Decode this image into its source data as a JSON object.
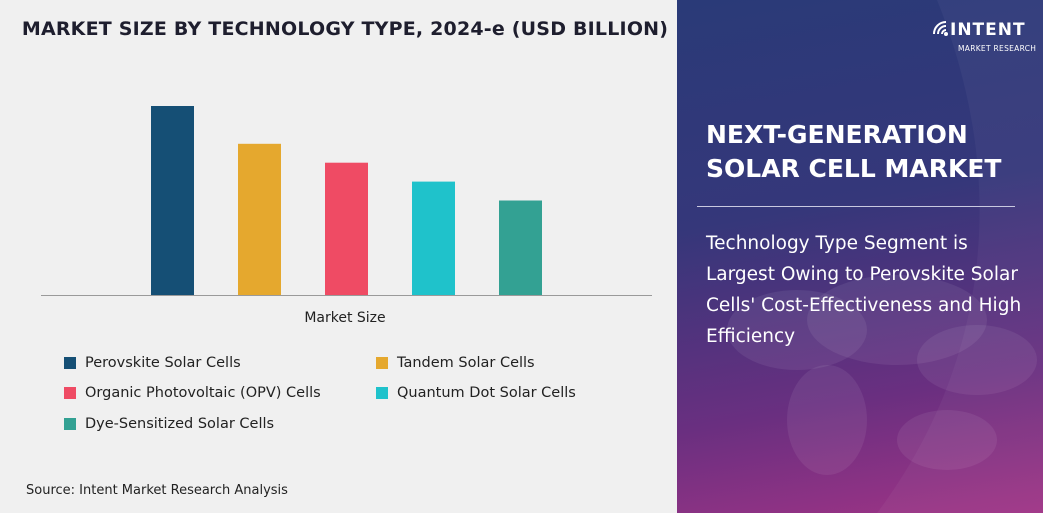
{
  "chart_data": {
    "type": "bar",
    "title": "MARKET SIZE BY TECHNOLOGY TYPE, 2024-e (USD BILLION)",
    "categories": [
      "Market Size"
    ],
    "series": [
      {
        "name": "Perovskite Solar Cells",
        "values": [
          100
        ],
        "color": "#154f75"
      },
      {
        "name": "Tandem Solar Cells",
        "values": [
          80
        ],
        "color": "#e5a82e"
      },
      {
        "name": "Organic Photovoltaic (OPV) Cells",
        "values": [
          70
        ],
        "color": "#ef4b64"
      },
      {
        "name": "Quantum Dot Solar Cells",
        "values": [
          60
        ],
        "color": "#1fc2cb"
      },
      {
        "name": "Dye-Sensitized Solar Cells",
        "values": [
          50
        ],
        "color": "#33a193"
      }
    ],
    "ylim": [
      0,
      100
    ],
    "grid": false,
    "legend_position": "bottom",
    "xlabel": "",
    "ylabel": ""
  },
  "source": "Source: Intent Market Research Analysis",
  "brand": {
    "logo_word": "INTENT",
    "logo_sub": "MARKET RESEARCH",
    "logo_icon": "wifi-signal-icon"
  },
  "report": {
    "title": "NEXT-GENERATION SOLAR CELL MARKET",
    "insight": "Technology Type Segment is Largest Owing to Perovskite Solar Cells' Cost-Effectiveness and High Efficiency"
  }
}
